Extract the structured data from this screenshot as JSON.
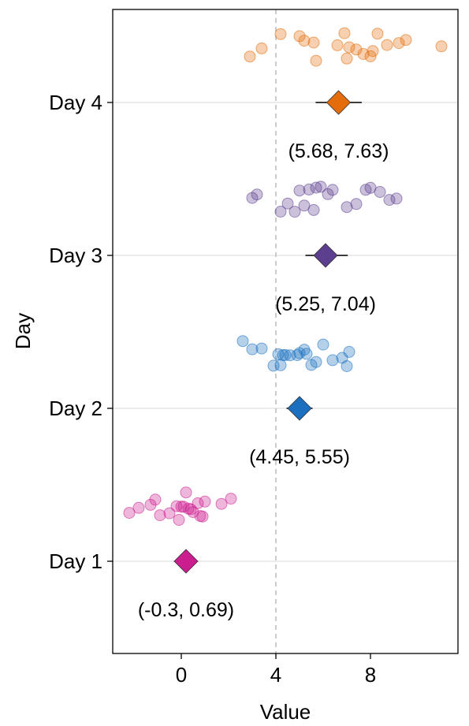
{
  "chart_data": {
    "type": "scatter",
    "title": "",
    "xlabel": "Value",
    "ylabel": "Day",
    "xlim": [
      -2.9,
      11.7
    ],
    "x_ticks": [
      0,
      4,
      8
    ],
    "x_tick_labels": [
      "0",
      "4",
      "8"
    ],
    "reference_line_x": 4,
    "grid": "horizontal major lines only",
    "legend": "none",
    "categories": [
      "Day 1",
      "Day 2",
      "Day 3",
      "Day 4"
    ],
    "series": [
      {
        "name": "Day 1",
        "color": "#cc1d8f",
        "points": [
          -2.2,
          -1.8,
          -1.3,
          -1.1,
          -0.9,
          -0.5,
          -0.2,
          0.0,
          0.1,
          0.2,
          0.3,
          0.4,
          0.7,
          0.8,
          1.0,
          1.7,
          2.1,
          -0.1,
          0.5,
          0.9
        ],
        "mean": 0.2,
        "ci": [
          -0.3,
          0.69
        ],
        "ci_label": "(-0.3, 0.69)"
      },
      {
        "name": "Day 2",
        "color": "#1a6fbf",
        "points": [
          2.6,
          3.0,
          3.4,
          3.9,
          4.1,
          4.3,
          4.4,
          4.6,
          4.9,
          5.2,
          5.5,
          5.7,
          6.0,
          6.4,
          6.8,
          7.0,
          7.1,
          4.2,
          5.0,
          5.3
        ],
        "mean": 5.0,
        "ci": [
          4.45,
          5.55
        ],
        "ci_label": "(4.45, 5.55)"
      },
      {
        "name": "Day 3",
        "color": "#5c3f8f",
        "points": [
          3.0,
          3.2,
          4.2,
          4.5,
          4.8,
          5.2,
          5.4,
          5.6,
          5.7,
          6.2,
          7.0,
          7.4,
          7.8,
          8.0,
          8.4,
          8.8,
          9.1,
          5.0,
          5.9,
          6.4
        ],
        "mean": 6.1,
        "ci": [
          5.25,
          7.04
        ],
        "ci_label": "(5.25, 7.04)"
      },
      {
        "name": "Day 4",
        "color": "#e46c0a",
        "points": [
          2.9,
          3.4,
          4.2,
          5.0,
          5.2,
          5.7,
          6.6,
          6.9,
          7.1,
          7.4,
          7.7,
          8.1,
          8.3,
          8.7,
          9.2,
          9.5,
          11.0,
          5.6,
          7.0,
          8.0
        ],
        "mean": 6.65,
        "ci": [
          5.68,
          7.63
        ],
        "ci_label": "(5.68, 7.63)"
      }
    ]
  }
}
